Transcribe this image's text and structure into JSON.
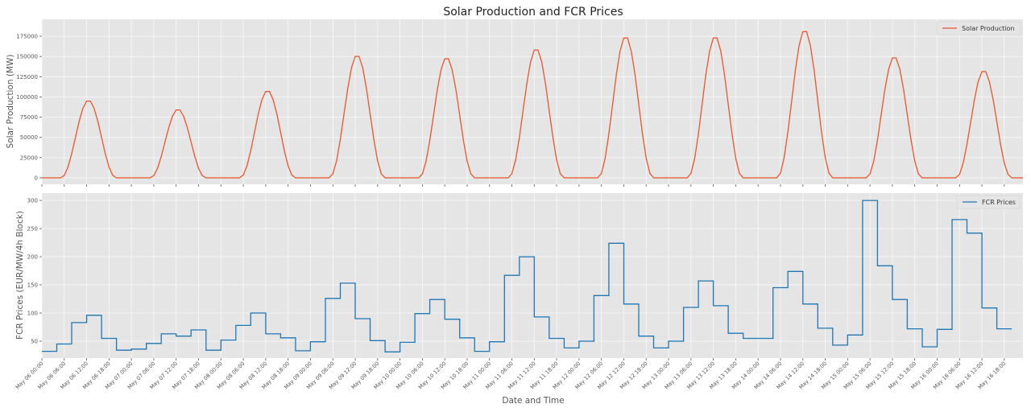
{
  "chart_data": {
    "type": "line",
    "title": "Solar Production and FCR Prices",
    "xlabel": "Date and Time",
    "x_ticks": [
      "May 06 00:00",
      "May 06 06:00",
      "May 06 12:00",
      "May 06 18:00",
      "May 07 00:00",
      "May 07 06:00",
      "May 07 12:00",
      "May 07 18:00",
      "May 08 00:00",
      "May 08 06:00",
      "May 08 12:00",
      "May 08 18:00",
      "May 09 00:00",
      "May 09 06:00",
      "May 09 12:00",
      "May 09 18:00",
      "May 10 00:00",
      "May 10 06:00",
      "May 10 12:00",
      "May 10 18:00",
      "May 11 00:00",
      "May 11 06:00",
      "May 11 12:00",
      "May 11 18:00",
      "May 12 00:00",
      "May 12 06:00",
      "May 12 12:00",
      "May 12 18:00",
      "May 13 00:00",
      "May 13 06:00",
      "May 13 12:00",
      "May 13 18:00",
      "May 14 00:00",
      "May 14 06:00",
      "May 14 12:00",
      "May 14 18:00",
      "May 15 00:00",
      "May 15 06:00",
      "May 15 12:00",
      "May 15 18:00",
      "May 16 00:00",
      "May 16 06:00",
      "May 16 12:00",
      "May 16 18:00"
    ],
    "x_range_hours": [
      0,
      263
    ],
    "panels": [
      {
        "series": {
          "name": "Solar Production",
          "color": "#e8562a",
          "daily_peak_mw": [
            96000,
            85000,
            108000,
            152000,
            149000,
            160000,
            175000,
            175000,
            183000,
            150000,
            133000
          ],
          "daily_peak_hour": [
            12,
            12,
            12,
            12,
            12,
            12,
            12,
            12,
            12,
            12,
            12
          ],
          "sunrise_hour": 5,
          "sunset_hour": 20,
          "night_value_mw": 0
        },
        "ylabel": "Solar Production (MW)",
        "ylim": [
          -8000,
          196000
        ],
        "yticks": [
          0,
          25000,
          50000,
          75000,
          100000,
          125000,
          150000,
          175000
        ],
        "legend": "top-right",
        "grid": true
      },
      {
        "series": {
          "name": "FCR Prices",
          "color": "#1f77b4",
          "block_hours": 4,
          "values": [
            32,
            45,
            83,
            96,
            55,
            34,
            36,
            46,
            63,
            59,
            70,
            34,
            52,
            78,
            100,
            63,
            56,
            33,
            49,
            126,
            153,
            90,
            51,
            31,
            48,
            99,
            124,
            89,
            56,
            32,
            49,
            167,
            200,
            93,
            55,
            38,
            50,
            131,
            224,
            116,
            59,
            38,
            50,
            110,
            157,
            113,
            64,
            55,
            55,
            145,
            174,
            116,
            73,
            43,
            61,
            300,
            184,
            124,
            72,
            40,
            71,
            266,
            242,
            109,
            72
          ]
        },
        "ylabel": "FCR Prices (EUR/MW/4h Block)",
        "ylim": [
          20,
          313
        ],
        "yticks": [
          50,
          100,
          150,
          200,
          250,
          300
        ],
        "legend": "top-right",
        "grid": true
      }
    ]
  }
}
